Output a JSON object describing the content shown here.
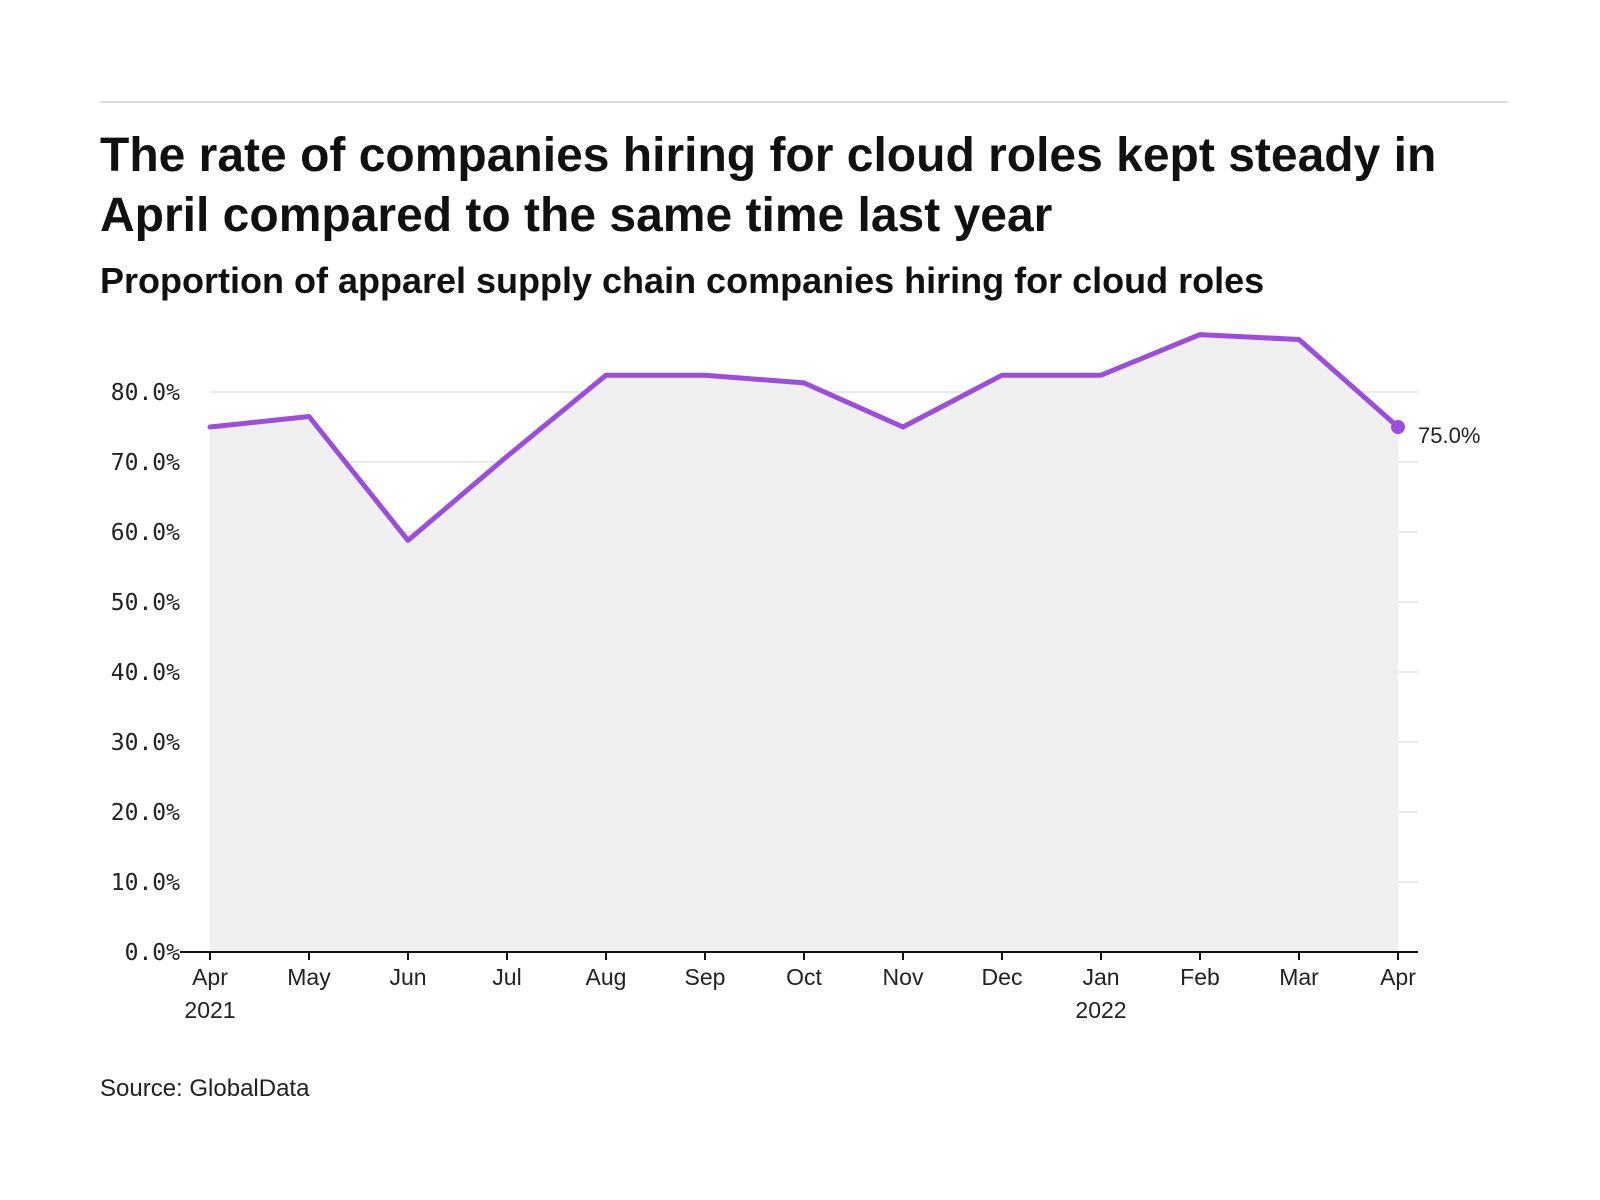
{
  "header": {
    "title": "The rate of companies hiring for cloud roles kept steady in April compared to the same time last year",
    "subtitle": "Proportion of apparel supply chain companies hiring for cloud roles"
  },
  "footer": {
    "source": "Source: GlobalData"
  },
  "chart_data": {
    "type": "area",
    "title": "The rate of companies hiring for cloud roles kept steady in April compared to the same time last year",
    "subtitle": "Proportion of apparel supply chain companies hiring for cloud roles",
    "xlabel": "",
    "ylabel": "",
    "categories": [
      "2021-04",
      "2021-05",
      "2021-06",
      "2021-07",
      "2021-08",
      "2021-09",
      "2021-10",
      "2021-11",
      "2021-12",
      "2022-01",
      "2022-02",
      "2022-03",
      "2022-04"
    ],
    "x_tick_labels": [
      {
        "month": "Apr",
        "year": "2021"
      },
      {
        "month": "May",
        "year": ""
      },
      {
        "month": "Jun",
        "year": ""
      },
      {
        "month": "Jul",
        "year": ""
      },
      {
        "month": "Aug",
        "year": ""
      },
      {
        "month": "Sep",
        "year": ""
      },
      {
        "month": "Oct",
        "year": ""
      },
      {
        "month": "Nov",
        "year": ""
      },
      {
        "month": "Dec",
        "year": ""
      },
      {
        "month": "Jan",
        "year": "2022"
      },
      {
        "month": "Feb",
        "year": ""
      },
      {
        "month": "Mar",
        "year": ""
      },
      {
        "month": "Apr",
        "year": ""
      }
    ],
    "values": [
      75.0,
      76.5,
      58.8,
      70.8,
      82.4,
      82.4,
      81.3,
      75.0,
      82.4,
      82.4,
      88.2,
      87.5,
      75.0
    ],
    "ylim": [
      0,
      90
    ],
    "yticks": [
      0,
      10,
      20,
      30,
      40,
      50,
      60,
      70,
      80
    ],
    "ytick_labels": [
      "0.0%",
      "10.0%",
      "20.0%",
      "30.0%",
      "40.0%",
      "50.0%",
      "60.0%",
      "70.0%",
      "80.0%"
    ],
    "end_label": "75.0%",
    "grid": true,
    "legend": "none",
    "line_color": "#9b4ddb",
    "fill_color": "#f0f0f0",
    "grid_color": "#e3e3e3"
  }
}
